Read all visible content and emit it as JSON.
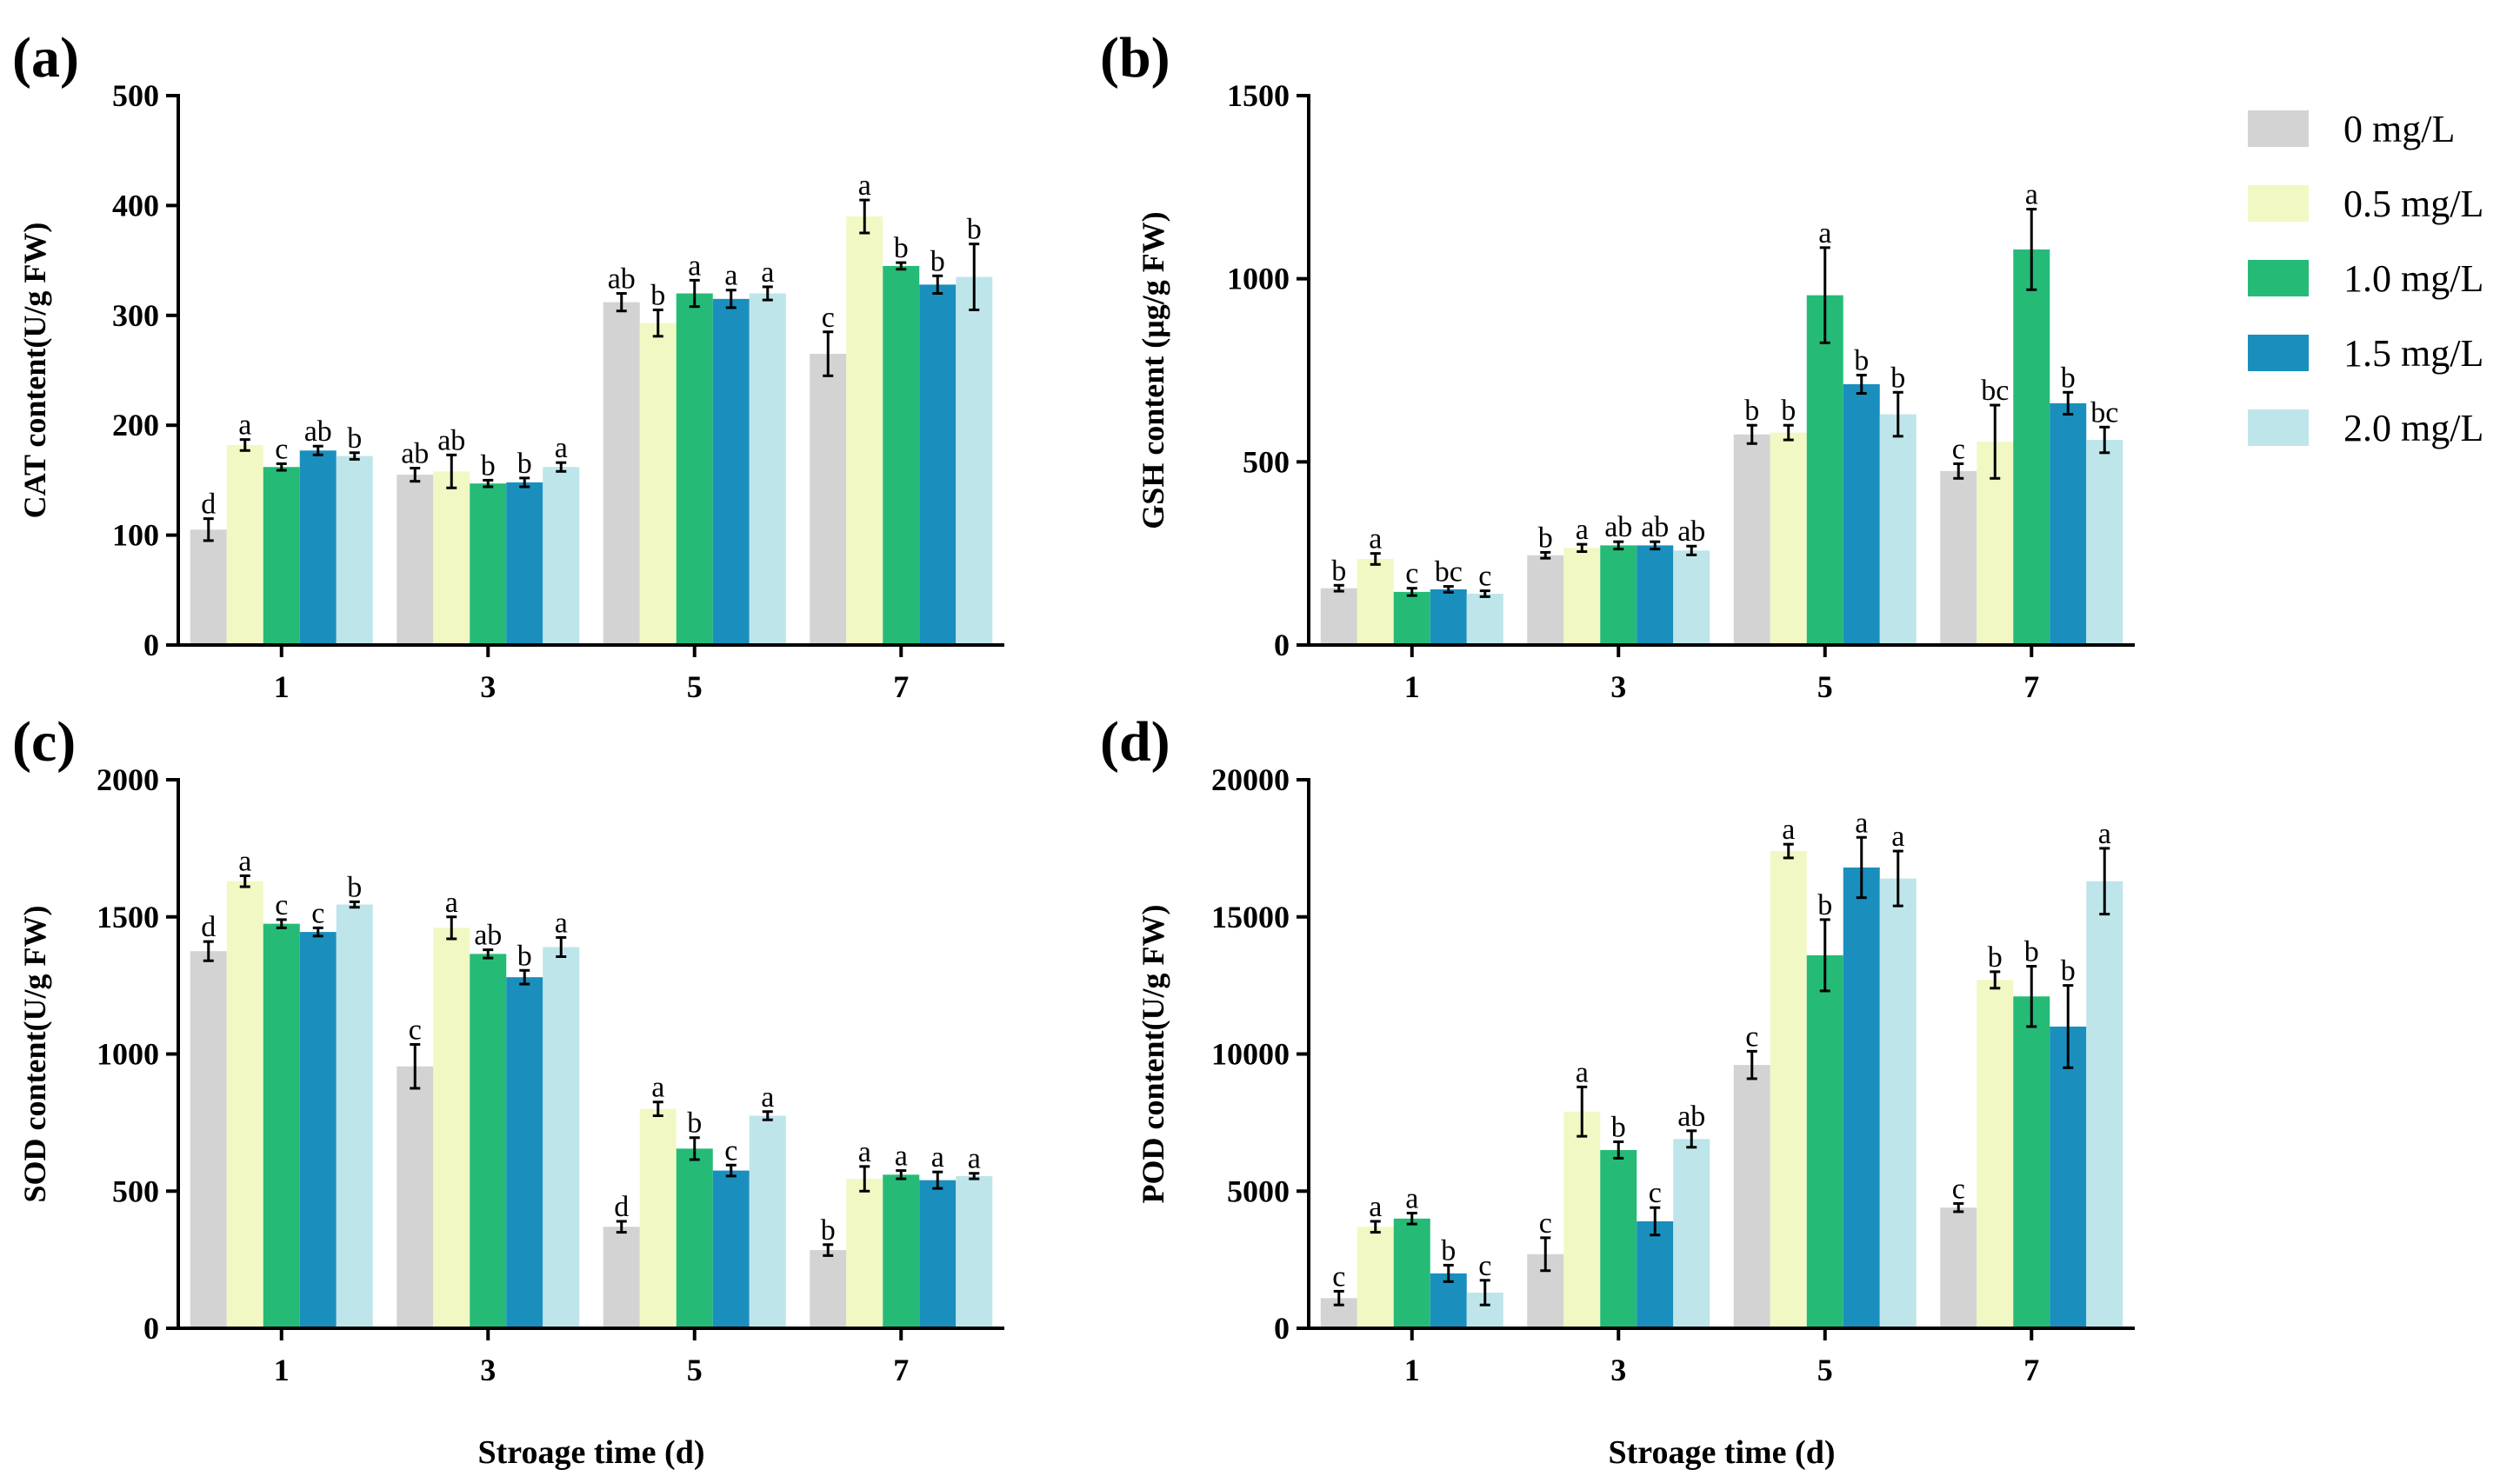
{
  "chart_data": [
    {
      "type": "bar",
      "panel": "(a)",
      "ylabel": "CAT content(U/g FW)",
      "xlabel": "",
      "ylim": [
        0,
        500
      ],
      "yticks": [
        0,
        100,
        200,
        300,
        400,
        500
      ],
      "categories": [
        "1",
        "3",
        "5",
        "7"
      ],
      "series": [
        {
          "name": "0 mg/L",
          "values": [
            105,
            155,
            312,
            265
          ],
          "errors": [
            10,
            6,
            8,
            20
          ],
          "letters": [
            "d",
            "ab",
            "ab",
            "c"
          ]
        },
        {
          "name": "0.5 mg/L",
          "values": [
            182,
            158,
            293,
            390
          ],
          "errors": [
            5,
            15,
            12,
            15
          ],
          "letters": [
            "a",
            "ab",
            "b",
            "a"
          ]
        },
        {
          "name": "1.0 mg/L",
          "values": [
            162,
            147,
            320,
            345
          ],
          "errors": [
            3,
            3,
            12,
            3
          ],
          "letters": [
            "c",
            "b",
            "a",
            "b"
          ]
        },
        {
          "name": "1.5 mg/L",
          "values": [
            177,
            148,
            315,
            328
          ],
          "errors": [
            4,
            4,
            8,
            8
          ],
          "letters": [
            "ab",
            "b",
            "a",
            "b"
          ]
        },
        {
          "name": "2.0 mg/L",
          "values": [
            172,
            162,
            320,
            335
          ],
          "errors": [
            3,
            4,
            6,
            30
          ],
          "letters": [
            "b",
            "a",
            "a",
            "b"
          ]
        }
      ]
    },
    {
      "type": "bar",
      "panel": "(b)",
      "ylabel": "GSH content (μg/g FW)",
      "xlabel": "",
      "ylim": [
        0,
        1500
      ],
      "yticks": [
        0,
        500,
        1000,
        1500
      ],
      "categories": [
        "1",
        "3",
        "5",
        "7"
      ],
      "series": [
        {
          "name": "0 mg/L",
          "values": [
            155,
            245,
            575,
            475
          ],
          "errors": [
            8,
            8,
            25,
            20
          ],
          "letters": [
            "b",
            "b",
            "b",
            "c"
          ]
        },
        {
          "name": "0.5 mg/L",
          "values": [
            235,
            265,
            580,
            555
          ],
          "errors": [
            15,
            10,
            20,
            100
          ],
          "letters": [
            "a",
            "a",
            "b",
            "bc"
          ]
        },
        {
          "name": "1.0 mg/L",
          "values": [
            145,
            272,
            955,
            1080
          ],
          "errors": [
            10,
            10,
            130,
            110
          ],
          "letters": [
            "c",
            "ab",
            "a",
            "a"
          ]
        },
        {
          "name": "1.5 mg/L",
          "values": [
            152,
            272,
            712,
            660
          ],
          "errors": [
            8,
            10,
            25,
            30
          ],
          "letters": [
            "bc",
            "ab",
            "b",
            "b"
          ]
        },
        {
          "name": "2.0 mg/L",
          "values": [
            140,
            258,
            630,
            560
          ],
          "errors": [
            8,
            12,
            60,
            35
          ],
          "letters": [
            "c",
            "ab",
            "b",
            "bc"
          ]
        }
      ]
    },
    {
      "type": "bar",
      "panel": "(c)",
      "ylabel": "SOD content(U/g FW)",
      "xlabel": "Stroage time (d)",
      "ylim": [
        0,
        2000
      ],
      "yticks": [
        0,
        500,
        1000,
        1500,
        2000
      ],
      "categories": [
        "1",
        "3",
        "5",
        "7"
      ],
      "series": [
        {
          "name": "0 mg/L",
          "values": [
            1375,
            955,
            370,
            285
          ],
          "errors": [
            35,
            80,
            20,
            20
          ],
          "letters": [
            "d",
            "c",
            "d",
            "b"
          ]
        },
        {
          "name": "0.5 mg/L",
          "values": [
            1630,
            1460,
            800,
            545
          ],
          "errors": [
            20,
            40,
            25,
            45
          ],
          "letters": [
            "a",
            "a",
            "a",
            "a"
          ]
        },
        {
          "name": "1.0 mg/L",
          "values": [
            1475,
            1365,
            655,
            560
          ],
          "errors": [
            15,
            15,
            40,
            15
          ],
          "letters": [
            "c",
            "ab",
            "b",
            "a"
          ]
        },
        {
          "name": "1.5 mg/L",
          "values": [
            1445,
            1280,
            575,
            540
          ],
          "errors": [
            15,
            25,
            20,
            30
          ],
          "letters": [
            "c",
            "b",
            "c",
            "a"
          ]
        },
        {
          "name": "2.0 mg/L",
          "values": [
            1545,
            1390,
            775,
            555
          ],
          "errors": [
            10,
            35,
            15,
            10
          ],
          "letters": [
            "b",
            "a",
            "a",
            "a"
          ]
        }
      ]
    },
    {
      "type": "bar",
      "panel": "(d)",
      "ylabel": "POD content(U/g FW)",
      "xlabel": "Stroage time (d)",
      "ylim": [
        0,
        20000
      ],
      "yticks": [
        0,
        5000,
        10000,
        15000,
        20000
      ],
      "categories": [
        "1",
        "3",
        "5",
        "7"
      ],
      "series": [
        {
          "name": "0 mg/L",
          "values": [
            1100,
            2700,
            9600,
            4400
          ],
          "errors": [
            250,
            600,
            500,
            150
          ],
          "letters": [
            "c",
            "c",
            "c",
            "c"
          ]
        },
        {
          "name": "0.5 mg/L",
          "values": [
            3700,
            7900,
            17400,
            12700
          ],
          "errors": [
            200,
            900,
            250,
            300
          ],
          "letters": [
            "a",
            "a",
            "a",
            "b"
          ]
        },
        {
          "name": "1.0 mg/L",
          "values": [
            4000,
            6500,
            13600,
            12100
          ],
          "errors": [
            200,
            300,
            1300,
            1100
          ],
          "letters": [
            "a",
            "b",
            "b",
            "b"
          ]
        },
        {
          "name": "1.5 mg/L",
          "values": [
            2000,
            3900,
            16800,
            11000
          ],
          "errors": [
            300,
            500,
            1100,
            1500
          ],
          "letters": [
            "b",
            "c",
            "a",
            "b"
          ]
        },
        {
          "name": "2.0 mg/L",
          "values": [
            1300,
            6900,
            16400,
            16300
          ],
          "errors": [
            450,
            300,
            1000,
            1200
          ],
          "letters": [
            "c",
            "ab",
            "a",
            "a"
          ]
        }
      ]
    }
  ],
  "legend": {
    "placement": "right",
    "entries": [
      "0 mg/L",
      "0.5 mg/L",
      "1.0 mg/L",
      "1.5 mg/L",
      "2.0 mg/L"
    ],
    "colors": [
      "#d3d3d3",
      "#f2f8c4",
      "#25bb77",
      "#1a8fbd",
      "#bee5ea"
    ]
  }
}
